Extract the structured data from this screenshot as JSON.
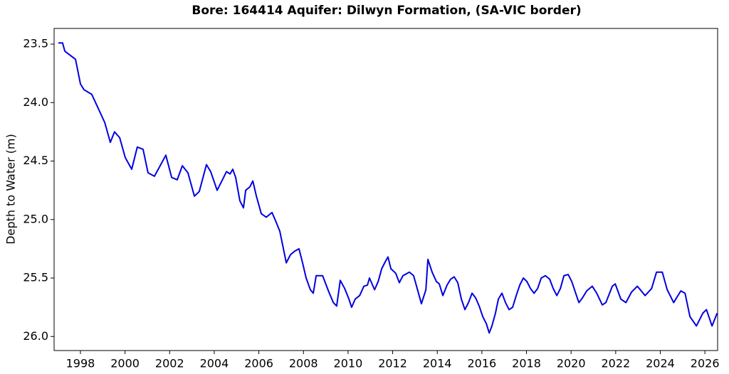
{
  "chart_data": {
    "type": "line",
    "title": "Bore: 164414  Aquifer: Dilwyn Formation, (SA-VIC border)",
    "y_label": "Depth to Water (m)",
    "y_inverted": true,
    "xlim": [
      1996.82,
      2026.57
    ],
    "ylim": [
      23.366,
      26.12
    ],
    "xticks": [
      1998,
      2000,
      2002,
      2004,
      2006,
      2008,
      2010,
      2012,
      2014,
      2016,
      2018,
      2020,
      2022,
      2024,
      2026
    ],
    "yticks": [
      23.5,
      {
        "value": 24,
        "label": "24.0"
      },
      24.5,
      {
        "value": 25,
        "label": "25.0"
      },
      25.5,
      {
        "value": 26,
        "label": "26.0"
      }
    ],
    "series": [
      {
        "color": "#0000e0",
        "x": [
          1997.01,
          1997.2,
          1997.3,
          1997.78,
          1998.0,
          1998.16,
          1998.51,
          1999.09,
          1999.34,
          1999.53,
          1999.76,
          2000.01,
          2000.3,
          2000.55,
          2000.81,
          2001.03,
          2001.32,
          2001.83,
          2002.09,
          2002.34,
          2002.57,
          2002.82,
          2003.11,
          2003.33,
          2003.65,
          2003.84,
          2004.13,
          2004.42,
          2004.55,
          2004.71,
          2004.83,
          2004.96,
          2005.15,
          2005.31,
          2005.41,
          2005.6,
          2005.73,
          2005.89,
          2006.11,
          2006.33,
          2006.59,
          2006.75,
          2006.94,
          2007.07,
          2007.23,
          2007.42,
          2007.61,
          2007.8,
          2007.96,
          2008.12,
          2008.31,
          2008.44,
          2008.57,
          2008.86,
          2009.14,
          2009.34,
          2009.49,
          2009.65,
          2009.85,
          2010.04,
          2010.16,
          2010.32,
          2010.52,
          2010.71,
          2010.87,
          2010.96,
          2011.19,
          2011.35,
          2011.51,
          2011.67,
          2011.79,
          2011.92,
          2012.14,
          2012.3,
          2012.46,
          2012.75,
          2012.94,
          2013.1,
          2013.29,
          2013.49,
          2013.58,
          2013.77,
          2013.96,
          2014.09,
          2014.25,
          2014.44,
          2014.6,
          2014.76,
          2014.92,
          2015.08,
          2015.24,
          2015.4,
          2015.56,
          2015.72,
          2015.88,
          2016.04,
          2016.2,
          2016.33,
          2016.45,
          2016.61,
          2016.74,
          2016.9,
          2017.06,
          2017.22,
          2017.38,
          2017.54,
          2017.7,
          2017.86,
          2018.02,
          2018.18,
          2018.34,
          2018.5,
          2018.66,
          2018.85,
          2019.04,
          2019.2,
          2019.36,
          2019.52,
          2019.68,
          2019.87,
          2020.03,
          2020.19,
          2020.35,
          2020.51,
          2020.7,
          2020.95,
          2021.15,
          2021.4,
          2021.56,
          2021.85,
          2021.98,
          2022.23,
          2022.46,
          2022.71,
          2022.97,
          2023.32,
          2023.61,
          2023.83,
          2024.09,
          2024.31,
          2024.6,
          2024.92,
          2025.11,
          2025.33,
          2025.62,
          2025.91,
          2026.07,
          2026.32,
          2026.55
        ],
        "values": [
          23.49,
          23.49,
          23.56,
          23.63,
          23.84,
          23.89,
          23.93,
          24.17,
          24.34,
          24.25,
          24.3,
          24.47,
          24.57,
          24.38,
          24.4,
          24.6,
          24.63,
          24.45,
          24.64,
          24.66,
          24.54,
          24.6,
          24.8,
          24.76,
          24.53,
          24.59,
          24.75,
          24.64,
          24.59,
          24.61,
          24.57,
          24.64,
          24.84,
          24.9,
          24.75,
          24.72,
          24.67,
          24.8,
          24.95,
          24.98,
          24.94,
          25.01,
          25.1,
          25.22,
          25.37,
          25.3,
          25.27,
          25.25,
          25.37,
          25.5,
          25.6,
          25.63,
          25.48,
          25.48,
          25.62,
          25.71,
          25.74,
          25.52,
          25.59,
          25.68,
          25.75,
          25.68,
          25.65,
          25.57,
          25.56,
          25.5,
          25.6,
          25.53,
          25.42,
          25.36,
          25.32,
          25.42,
          25.46,
          25.54,
          25.48,
          25.45,
          25.48,
          25.59,
          25.72,
          25.6,
          25.34,
          25.45,
          25.53,
          25.55,
          25.65,
          25.56,
          25.51,
          25.49,
          25.54,
          25.68,
          25.77,
          25.71,
          25.63,
          25.67,
          25.74,
          25.83,
          25.89,
          25.97,
          25.91,
          25.8,
          25.68,
          25.63,
          25.71,
          25.77,
          25.75,
          25.65,
          25.56,
          25.5,
          25.53,
          25.59,
          25.63,
          25.59,
          25.5,
          25.48,
          25.51,
          25.59,
          25.65,
          25.59,
          25.48,
          25.47,
          25.53,
          25.62,
          25.71,
          25.67,
          25.61,
          25.57,
          25.63,
          25.73,
          25.71,
          25.57,
          25.55,
          25.68,
          25.71,
          25.62,
          25.57,
          25.65,
          25.59,
          25.45,
          25.45,
          25.6,
          25.71,
          25.61,
          25.63,
          25.83,
          25.91,
          25.8,
          25.77,
          25.91,
          25.8
        ]
      }
    ]
  }
}
